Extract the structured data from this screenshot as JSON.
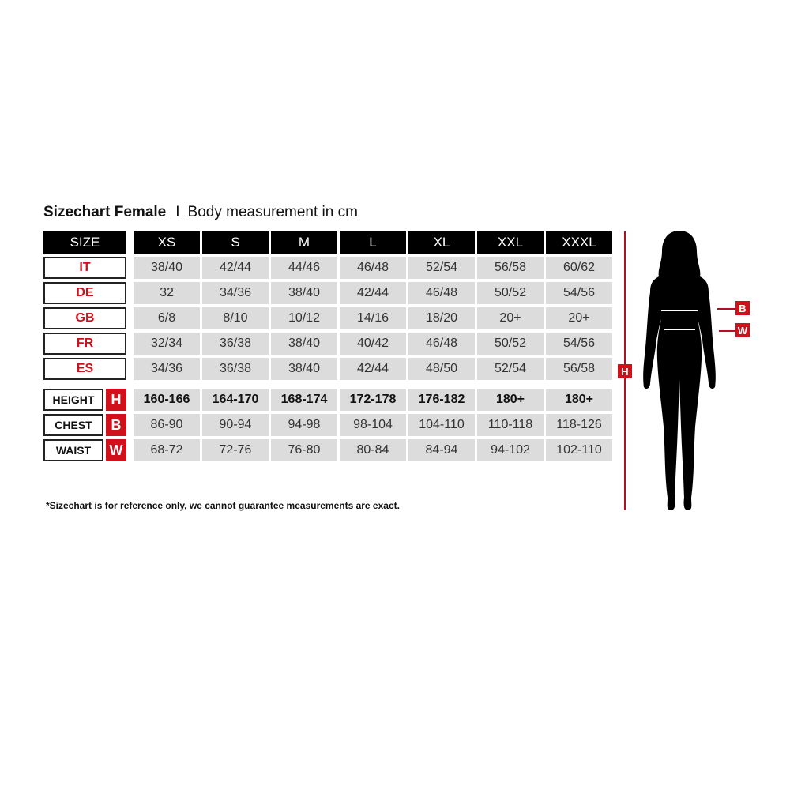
{
  "title": {
    "bold": "Sizechart Female",
    "separator": "I",
    "subtitle": "Body measurement in cm"
  },
  "header": {
    "label": "SIZE",
    "sizes": [
      "XS",
      "S",
      "M",
      "L",
      "XL",
      "XXL",
      "XXXL"
    ]
  },
  "conversion_rows": [
    {
      "label": "IT",
      "values": [
        "38/40",
        "42/44",
        "44/46",
        "46/48",
        "52/54",
        "56/58",
        "60/62"
      ]
    },
    {
      "label": "DE",
      "values": [
        "32",
        "34/36",
        "38/40",
        "42/44",
        "46/48",
        "50/52",
        "54/56"
      ]
    },
    {
      "label": "GB",
      "values": [
        "6/8",
        "8/10",
        "10/12",
        "14/16",
        "18/20",
        "20+",
        "20+"
      ]
    },
    {
      "label": "FR",
      "values": [
        "32/34",
        "36/38",
        "38/40",
        "40/42",
        "46/48",
        "50/52",
        "54/56"
      ]
    },
    {
      "label": "ES",
      "values": [
        "34/36",
        "36/38",
        "38/40",
        "42/44",
        "48/50",
        "52/54",
        "56/58"
      ]
    }
  ],
  "measure_rows": [
    {
      "label": "HEIGHT",
      "badge": "H",
      "values": [
        "160-166",
        "164-170",
        "168-174",
        "172-178",
        "176-182",
        "180+",
        "180+"
      ]
    },
    {
      "label": "CHEST",
      "badge": "B",
      "values": [
        "86-90",
        "90-94",
        "94-98",
        "98-104",
        "104-110",
        "110-118",
        "118-126"
      ]
    },
    {
      "label": "WAIST",
      "badge": "W",
      "values": [
        "68-72",
        "72-76",
        "76-80",
        "80-84",
        "84-94",
        "94-102",
        "102-110"
      ]
    }
  ],
  "figure": {
    "height_badge": "H",
    "chest_badge": "B",
    "waist_badge": "W"
  },
  "note": "*Sizechart is for reference only, we cannot guarantee measurements are exact.",
  "colors": {
    "accent": "#d0101b",
    "header_bg": "#000000",
    "cell_bg": "#dcdcdc"
  }
}
